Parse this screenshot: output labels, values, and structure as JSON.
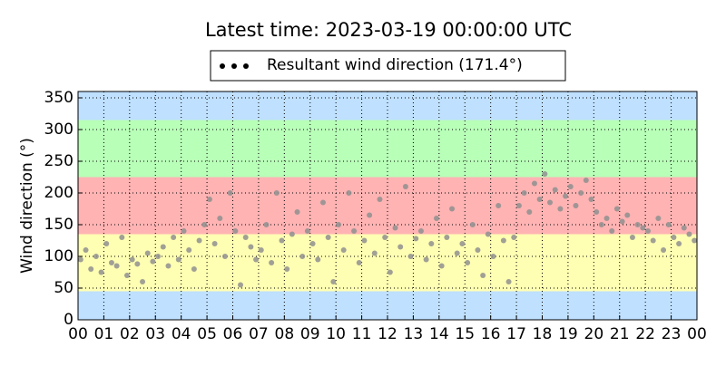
{
  "chart_data": {
    "type": "scatter",
    "title": "Latest time: 2023-03-19 00:00:00 UTC",
    "y_label": "Wind direction (°)",
    "xlim": [
      0,
      24
    ],
    "ylim": [
      0,
      360
    ],
    "xticks": [
      {
        "value": 0,
        "label": "00"
      },
      {
        "value": 1,
        "label": "01"
      },
      {
        "value": 2,
        "label": "02"
      },
      {
        "value": 3,
        "label": "03"
      },
      {
        "value": 4,
        "label": "04"
      },
      {
        "value": 5,
        "label": "05"
      },
      {
        "value": 6,
        "label": "06"
      },
      {
        "value": 7,
        "label": "07"
      },
      {
        "value": 8,
        "label": "08"
      },
      {
        "value": 9,
        "label": "09"
      },
      {
        "value": 10,
        "label": "10"
      },
      {
        "value": 11,
        "label": "11"
      },
      {
        "value": 12,
        "label": "12"
      },
      {
        "value": 13,
        "label": "13"
      },
      {
        "value": 14,
        "label": "14"
      },
      {
        "value": 15,
        "label": "15"
      },
      {
        "value": 16,
        "label": "16"
      },
      {
        "value": 17,
        "label": "17"
      },
      {
        "value": 18,
        "label": "18"
      },
      {
        "value": 19,
        "label": "19"
      },
      {
        "value": 20,
        "label": "20"
      },
      {
        "value": 21,
        "label": "21"
      },
      {
        "value": 22,
        "label": "22"
      },
      {
        "value": 23,
        "label": "23"
      },
      {
        "value": 24,
        "label": "00"
      }
    ],
    "yticks": [
      0,
      50,
      100,
      150,
      200,
      250,
      300,
      350
    ],
    "grid": true,
    "bands": [
      {
        "from": 0,
        "to": 45,
        "color": "#bfe0ff"
      },
      {
        "from": 45,
        "to": 135,
        "color": "#ffffb3"
      },
      {
        "from": 135,
        "to": 225,
        "color": "#ffb3b3"
      },
      {
        "from": 225,
        "to": 315,
        "color": "#b8ffb8"
      },
      {
        "from": 315,
        "to": 360,
        "color": "#bfe0ff"
      }
    ],
    "legend_loc": "upper center",
    "series": [
      {
        "name": "Resultant wind direction (171.4°)",
        "color": "#8f8f8f",
        "legend_color": "#000000",
        "x": [
          0.1,
          0.3,
          0.5,
          0.7,
          0.9,
          1.1,
          1.3,
          1.5,
          1.7,
          1.9,
          2.1,
          2.3,
          2.5,
          2.7,
          2.9,
          3.1,
          3.3,
          3.5,
          3.7,
          3.9,
          4.1,
          4.3,
          4.5,
          4.7,
          4.9,
          5.1,
          5.3,
          5.5,
          5.7,
          5.9,
          6.1,
          6.3,
          6.5,
          6.7,
          6.9,
          7.1,
          7.3,
          7.5,
          7.7,
          7.9,
          8.1,
          8.3,
          8.5,
          8.7,
          8.9,
          9.1,
          9.3,
          9.5,
          9.7,
          9.9,
          10.1,
          10.3,
          10.5,
          10.7,
          10.9,
          11.1,
          11.3,
          11.5,
          11.7,
          11.9,
          12.1,
          12.3,
          12.5,
          12.7,
          12.9,
          13.1,
          13.3,
          13.5,
          13.7,
          13.9,
          14.1,
          14.3,
          14.5,
          14.7,
          14.9,
          15.1,
          15.3,
          15.5,
          15.7,
          15.9,
          16.1,
          16.3,
          16.5,
          16.7,
          16.9,
          17.1,
          17.3,
          17.5,
          17.7,
          17.9,
          18.1,
          18.3,
          18.5,
          18.7,
          18.9,
          19.1,
          19.3,
          19.5,
          19.7,
          19.9,
          20.1,
          20.3,
          20.5,
          20.7,
          20.9,
          21.1,
          21.3,
          21.5,
          21.7,
          21.9,
          22.1,
          22.3,
          22.5,
          22.7,
          22.9,
          23.1,
          23.3,
          23.5,
          23.7,
          23.9
        ],
        "values": [
          95,
          110,
          80,
          100,
          75,
          120,
          90,
          85,
          130,
          70,
          95,
          88,
          60,
          105,
          92,
          100,
          115,
          85,
          130,
          95,
          140,
          110,
          80,
          125,
          150,
          190,
          120,
          160,
          100,
          200,
          140,
          55,
          130,
          115,
          95,
          110,
          150,
          90,
          200,
          125,
          80,
          135,
          170,
          100,
          140,
          120,
          95,
          185,
          130,
          60,
          150,
          110,
          200,
          140,
          90,
          125,
          165,
          105,
          190,
          130,
          75,
          145,
          115,
          210,
          100,
          128,
          140,
          95,
          120,
          160,
          85,
          130,
          175,
          105,
          120,
          90,
          150,
          110,
          70,
          135,
          100,
          180,
          125,
          60,
          130,
          180,
          200,
          170,
          215,
          190,
          230,
          185,
          205,
          175,
          195,
          210,
          180,
          200,
          220,
          190,
          170,
          150,
          160,
          140,
          175,
          155,
          165,
          130,
          150,
          145,
          140,
          125,
          160,
          110,
          150,
          130,
          120,
          145,
          135,
          125
        ]
      }
    ]
  }
}
